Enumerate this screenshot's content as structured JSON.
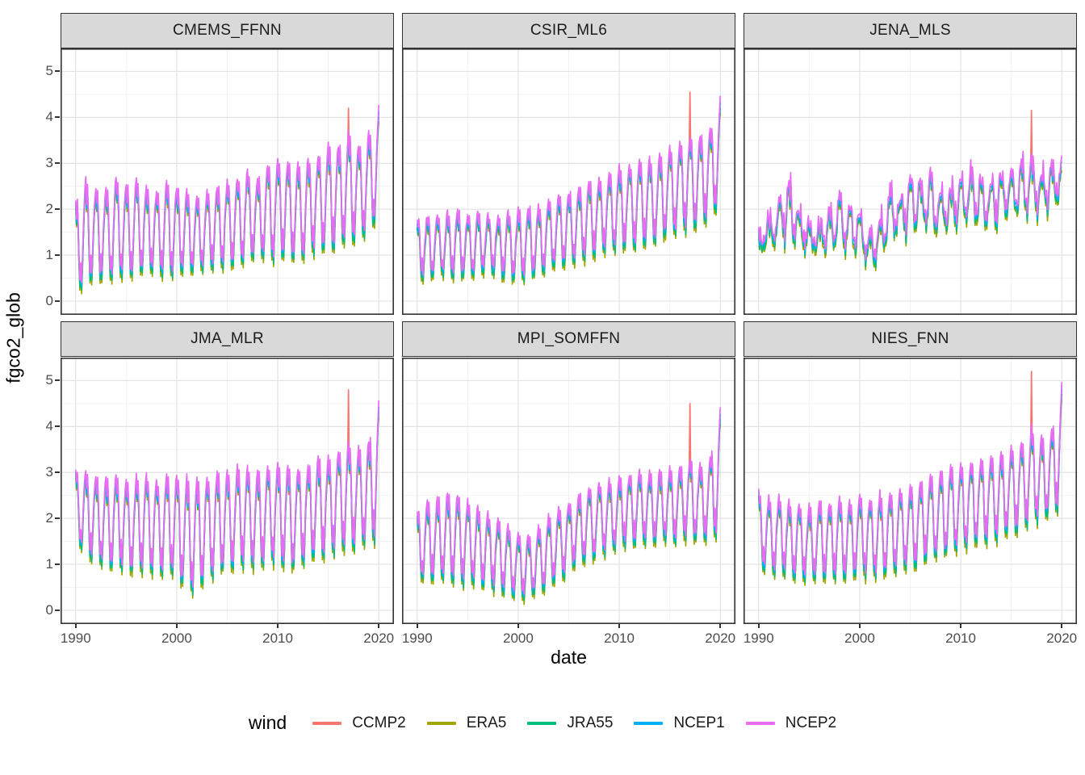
{
  "axes": {
    "x_title": "date",
    "y_title": "fgco2_glob",
    "x_ticks": [
      1990,
      2000,
      2010,
      2020
    ],
    "x_minor": [
      1995,
      2005,
      2015
    ],
    "y_ticks": [
      0,
      1,
      2,
      3,
      4,
      5
    ],
    "y_minor": [
      0.5,
      1.5,
      2.5,
      3.5,
      4.5
    ],
    "tick_color": "#4D4D4D"
  },
  "legend": {
    "title": "wind",
    "items": [
      {
        "label": "CCMP2",
        "color": "#F8766D"
      },
      {
        "label": "ERA5",
        "color": "#A3A500"
      },
      {
        "label": "JRA55",
        "color": "#00BF7D"
      },
      {
        "label": "NCEP1",
        "color": "#00B0F6"
      },
      {
        "label": "NCEP2",
        "color": "#E76BF3"
      }
    ]
  },
  "chart_data": {
    "type": "line",
    "x_range": [
      1988.5,
      2021.5
    ],
    "y_range": [
      -0.3,
      5.5
    ],
    "x_years": [
      1990,
      2020
    ],
    "series": [
      {
        "name": "CCMP2",
        "color": "#F8766D",
        "amp_mult": 0.98,
        "offset": -0.06
      },
      {
        "name": "ERA5",
        "color": "#A3A500",
        "amp_mult": 1.05,
        "offset": -0.09
      },
      {
        "name": "JRA55",
        "color": "#00BF7D",
        "amp_mult": 1.02,
        "offset": -0.04
      },
      {
        "name": "NCEP1",
        "color": "#00B0F6",
        "amp_mult": 0.99,
        "offset": 0.03
      },
      {
        "name": "NCEP2",
        "color": "#E76BF3",
        "amp_mult": 1.0,
        "offset": 0.1
      }
    ],
    "waveforms": {
      "annual": [
        1.0,
        0.58,
        0.9,
        0.35,
        -0.4,
        -0.92,
        -0.55,
        -1.0,
        -0.5,
        0.05,
        0.48,
        0.82
      ],
      "noisy": [
        0.7,
        0.3,
        0.85,
        0.25,
        -0.3,
        -0.7,
        -0.35,
        -0.9,
        -0.5,
        -0.1,
        0.35,
        0.6
      ]
    },
    "facets": [
      {
        "title": "CMEMS_FFNN",
        "waveform": "annual",
        "jitter": 0.06,
        "ccmp2_spike": {
          "year": 2017,
          "value": 4.2
        },
        "end_value": 4.15,
        "high": [
          2.1,
          2.55,
          2.35,
          2.4,
          2.65,
          2.45,
          2.6,
          2.4,
          2.3,
          2.55,
          2.4,
          2.35,
          2.2,
          2.3,
          2.4,
          2.5,
          2.6,
          2.8,
          2.6,
          2.9,
          3.05,
          2.95,
          2.9,
          3.0,
          3.1,
          3.35,
          3.3,
          3.6,
          3.3,
          3.55,
          4.05
        ],
        "low": [
          0.25,
          0.35,
          0.55,
          0.45,
          0.5,
          0.55,
          0.5,
          0.7,
          0.65,
          0.45,
          0.7,
          0.6,
          0.65,
          0.75,
          0.7,
          0.8,
          0.8,
          0.85,
          1.0,
          0.9,
          0.95,
          1.05,
          0.85,
          1.0,
          1.2,
          1.1,
          1.25,
          1.3,
          1.35,
          1.45,
          1.9
        ]
      },
      {
        "title": "CSIR_ML6",
        "waveform": "annual",
        "jitter": 0.06,
        "ccmp2_spike": {
          "year": 2017,
          "value": 4.55
        },
        "end_value": 4.35,
        "high": [
          1.7,
          1.75,
          1.8,
          1.85,
          1.9,
          1.8,
          1.85,
          1.8,
          1.75,
          1.85,
          1.9,
          1.95,
          2.0,
          2.1,
          2.2,
          2.3,
          2.4,
          2.5,
          2.55,
          2.7,
          2.85,
          2.9,
          2.95,
          3.0,
          3.1,
          3.25,
          3.35,
          3.5,
          3.55,
          3.7,
          4.25
        ],
        "low": [
          0.55,
          0.5,
          0.6,
          0.55,
          0.6,
          0.55,
          0.6,
          0.65,
          0.55,
          0.5,
          0.45,
          0.55,
          0.6,
          0.7,
          0.75,
          0.8,
          0.9,
          1.0,
          1.05,
          1.1,
          1.15,
          1.2,
          1.25,
          1.3,
          1.4,
          1.45,
          1.55,
          1.6,
          1.7,
          1.85,
          2.1
        ]
      },
      {
        "title": "JENA_MLS",
        "waveform": "noisy",
        "jitter": 0.17,
        "ccmp2_spike": {
          "year": 2017,
          "value": 4.15
        },
        "end_value": 3.05,
        "high": [
          1.5,
          1.9,
          2.3,
          2.75,
          2.1,
          1.75,
          1.8,
          2.0,
          2.45,
          2.2,
          2.1,
          1.6,
          2.0,
          2.5,
          2.4,
          2.9,
          2.7,
          2.9,
          2.5,
          2.6,
          2.9,
          3.0,
          2.7,
          2.8,
          2.9,
          3.0,
          3.1,
          3.25,
          2.9,
          3.1,
          2.95
        ],
        "low": [
          0.85,
          1.1,
          1.2,
          1.3,
          1.15,
          1.0,
          0.95,
          1.05,
          1.2,
          1.1,
          1.0,
          0.65,
          0.9,
          1.3,
          1.35,
          1.4,
          1.5,
          1.45,
          1.4,
          1.5,
          1.55,
          1.6,
          1.55,
          1.6,
          1.7,
          1.75,
          1.8,
          1.85,
          1.9,
          2.0,
          2.2
        ]
      },
      {
        "title": "JMA_MLR",
        "waveform": "annual",
        "jitter": 0.07,
        "ccmp2_spike": {
          "year": 2017,
          "value": 4.8
        },
        "end_value": 4.45,
        "high": [
          3.0,
          2.9,
          2.85,
          2.8,
          2.9,
          2.75,
          2.8,
          2.85,
          2.75,
          2.9,
          2.85,
          2.8,
          2.75,
          2.85,
          2.9,
          2.95,
          3.0,
          3.05,
          2.95,
          3.05,
          3.1,
          3.05,
          3.0,
          3.1,
          3.2,
          3.3,
          3.4,
          3.6,
          3.45,
          3.6,
          4.35
        ],
        "low": [
          1.45,
          1.25,
          1.05,
          0.95,
          1.0,
          0.9,
          0.85,
          0.95,
          0.8,
          0.9,
          0.7,
          0.5,
          0.45,
          0.75,
          0.85,
          0.95,
          1.0,
          1.05,
          0.95,
          1.05,
          1.1,
          0.9,
          1.0,
          1.1,
          1.2,
          1.25,
          1.35,
          1.45,
          1.35,
          1.5,
          1.6
        ]
      },
      {
        "title": "MPI_SOMFFN",
        "waveform": "annual",
        "jitter": 0.06,
        "ccmp2_spike": {
          "year": 2017,
          "value": 4.5
        },
        "end_value": 4.3,
        "high": [
          2.05,
          2.3,
          2.35,
          2.5,
          2.45,
          2.3,
          2.2,
          2.05,
          1.9,
          1.75,
          1.6,
          1.55,
          1.7,
          1.95,
          2.15,
          2.3,
          2.45,
          2.6,
          2.7,
          2.75,
          2.85,
          2.9,
          2.95,
          2.9,
          2.95,
          3.0,
          3.05,
          3.2,
          3.1,
          3.25,
          4.2
        ],
        "low": [
          0.6,
          0.7,
          0.65,
          0.7,
          0.65,
          0.6,
          0.55,
          0.5,
          0.45,
          0.4,
          0.3,
          0.3,
          0.4,
          0.55,
          0.7,
          0.85,
          1.0,
          1.1,
          1.2,
          1.3,
          1.4,
          1.45,
          1.5,
          1.45,
          1.5,
          1.55,
          1.55,
          1.6,
          1.55,
          1.6,
          1.7
        ]
      },
      {
        "title": "NIES_FNN",
        "waveform": "annual",
        "jitter": 0.06,
        "ccmp2_spike": {
          "year": 2017,
          "value": 5.2
        },
        "end_value": 4.85,
        "high": [
          2.5,
          2.35,
          2.4,
          2.3,
          2.25,
          2.2,
          2.3,
          2.25,
          2.35,
          2.3,
          2.4,
          2.35,
          2.45,
          2.5,
          2.55,
          2.6,
          2.7,
          2.85,
          2.95,
          3.05,
          3.1,
          3.15,
          3.25,
          3.3,
          3.35,
          3.45,
          3.55,
          3.9,
          3.7,
          3.85,
          4.75
        ],
        "low": [
          0.95,
          0.85,
          0.8,
          0.75,
          0.7,
          0.65,
          0.7,
          0.75,
          0.7,
          0.75,
          0.8,
          0.75,
          0.8,
          0.85,
          0.9,
          0.95,
          1.05,
          1.15,
          1.2,
          1.3,
          1.35,
          1.4,
          1.5,
          1.55,
          1.6,
          1.7,
          1.8,
          1.95,
          2.0,
          2.1,
          2.3
        ]
      }
    ],
    "style": {
      "panel_bg": "#FFFFFF",
      "grid_major": "#E3E3E3",
      "grid_minor": "#F1F1F1",
      "panel_border": "#333333",
      "strip_bg": "#D9D9D9",
      "line_width": 1.7
    }
  }
}
